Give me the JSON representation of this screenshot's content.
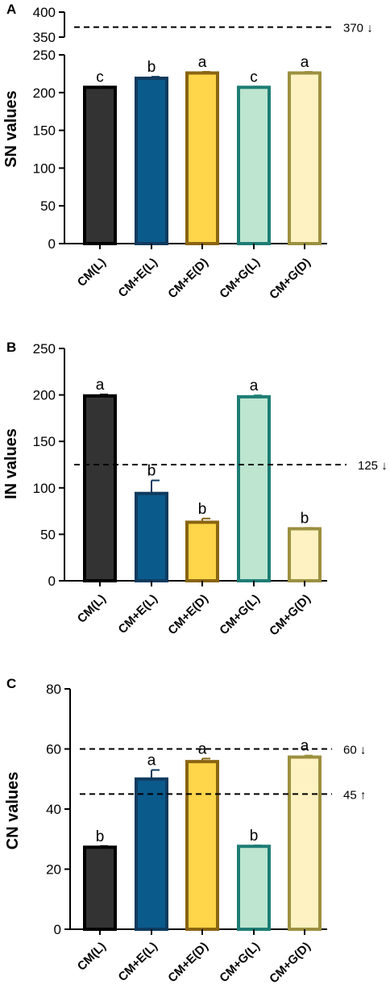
{
  "chart_data": [
    {
      "panel": "A",
      "type": "bar",
      "ylabel": "SN values",
      "categories": [
        "CM(L)",
        "CM+E(L)",
        "CM+E(D)",
        "CM+G(L)",
        "CM+G(D)"
      ],
      "values": [
        207,
        219,
        226,
        207,
        226
      ],
      "errors": [
        1,
        2,
        1.5,
        1,
        1.5
      ],
      "significance": [
        "c",
        "b",
        "a",
        "c",
        "a"
      ],
      "colors": {
        "fill": [
          "#333333",
          "#0b5a8c",
          "#ffd54a",
          "#bde5d0",
          "#fff2c2"
        ],
        "stroke": [
          "#000000",
          "#0f3b5f",
          "#8a6512",
          "#1e7d75",
          "#9c9040"
        ]
      },
      "broken_axis": true,
      "ylim_lower": [
        0,
        250
      ],
      "yticks_lower": [
        "0",
        "50",
        "100",
        "150",
        "200",
        "250"
      ],
      "ylim_upper": [
        350,
        400
      ],
      "yticks_upper": [
        "350",
        "400"
      ],
      "reference_lines": [
        {
          "value": 370,
          "label": "370 ↓"
        }
      ]
    },
    {
      "panel": "B",
      "type": "bar",
      "ylabel": "IN values",
      "categories": [
        "CM(L)",
        "CM+E(L)",
        "CM+E(D)",
        "CM+G(L)",
        "CM+G(D)"
      ],
      "values": [
        199,
        94,
        63,
        198,
        56
      ],
      "errors": [
        1.5,
        14,
        4,
        1.5,
        1
      ],
      "significance": [
        "a",
        "b",
        "b",
        "a",
        "b"
      ],
      "colors": {
        "fill": [
          "#333333",
          "#0b5a8c",
          "#ffd54a",
          "#bde5d0",
          "#fff2c2"
        ],
        "stroke": [
          "#000000",
          "#0f3b5f",
          "#8a6512",
          "#1e7d75",
          "#9c9040"
        ]
      },
      "ylim": [
        0,
        250
      ],
      "yticks": [
        "0",
        "50",
        "100",
        "150",
        "200",
        "250"
      ],
      "reference_lines": [
        {
          "value": 125,
          "label": "125 ↓"
        }
      ]
    },
    {
      "panel": "C",
      "type": "bar",
      "ylabel": "CN values",
      "categories": [
        "CM(L)",
        "CM+E(L)",
        "CM+E(D)",
        "CM+G(L)",
        "CM+G(D)"
      ],
      "values": [
        27.3,
        50,
        55.8,
        27.6,
        57.3
      ],
      "errors": [
        0.4,
        3,
        1,
        0.3,
        0.5
      ],
      "significance": [
        "b",
        "a",
        "a",
        "b",
        "a"
      ],
      "colors": {
        "fill": [
          "#333333",
          "#0b5a8c",
          "#ffd54a",
          "#bde5d0",
          "#fff2c2"
        ],
        "stroke": [
          "#000000",
          "#0f3b5f",
          "#8a6512",
          "#1e7d75",
          "#9c9040"
        ]
      },
      "ylim": [
        0,
        80
      ],
      "yticks": [
        "0",
        "20",
        "40",
        "60",
        "80"
      ],
      "reference_lines": [
        {
          "value": 60,
          "label": "60 ↓"
        },
        {
          "value": 45,
          "label": "45 ↑"
        }
      ]
    }
  ]
}
